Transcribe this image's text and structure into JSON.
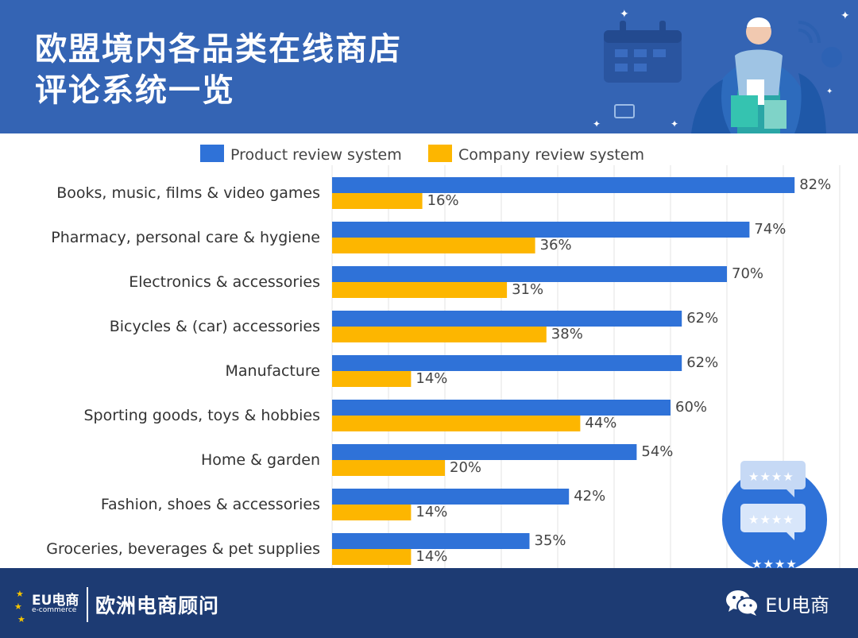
{
  "header": {
    "title_line1": "欧盟境内各品类在线商店",
    "title_line2": "评论系统一览"
  },
  "footer": {
    "logo_main": "EU电商",
    "logo_sub": "e-commerce",
    "brand": "欧洲电商顾问",
    "wechat_label": "EU电商"
  },
  "icons": [
    "calendar-icon",
    "shopping-person-icon",
    "wifi-icon",
    "credit-card-icon",
    "star-icon",
    "review-stars-icon",
    "wechat-icon"
  ],
  "colors": {
    "header_bg": "#3464b4",
    "footer_bg": "#1d3b73",
    "product": "#2f72d8",
    "company": "#fdb600"
  },
  "chart_data": {
    "type": "bar",
    "orientation": "horizontal",
    "categories": [
      "Books, music, films & video games",
      "Pharmacy, personal care & hygiene",
      "Electronics & accessories",
      "Bicycles & (car) accessories",
      "Manufacture",
      "Sporting goods, toys & hobbies",
      "Home & garden",
      "Fashion, shoes & accessories",
      "Groceries, beverages & pet supplies"
    ],
    "series": [
      {
        "name": "Product review system",
        "values": [
          82,
          74,
          70,
          62,
          62,
          60,
          54,
          42,
          35
        ],
        "labels": [
          "82%",
          "74%",
          "70%",
          "62%",
          "62%",
          "60%",
          "54%",
          "42%",
          "35%"
        ]
      },
      {
        "name": "Company review system",
        "values": [
          16,
          36,
          31,
          38,
          14,
          44,
          20,
          14,
          14
        ],
        "labels": [
          "16%",
          "36%",
          "31%",
          "38%",
          "14%",
          "44%",
          "20%",
          "14%",
          "14%"
        ]
      }
    ],
    "unit": "%",
    "xlim": [
      0,
      90
    ],
    "grid": true,
    "legend_position": "top"
  }
}
